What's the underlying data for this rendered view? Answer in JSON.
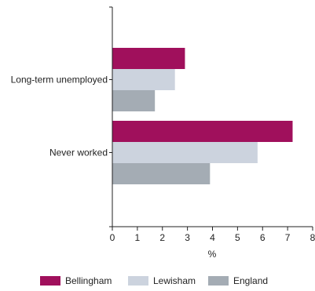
{
  "chart_data": {
    "type": "bar",
    "orientation": "horizontal",
    "categories": [
      "Long-term unemployed",
      "Never worked"
    ],
    "series": [
      {
        "name": "Bellingham",
        "color": "#a0105c",
        "values": [
          2.9,
          7.2
        ]
      },
      {
        "name": "Lewisham",
        "color": "#ccd3de",
        "values": [
          2.5,
          5.8
        ]
      },
      {
        "name": "England",
        "color": "#a4acb4",
        "values": [
          1.7,
          3.9
        ]
      }
    ],
    "x_ticks": [
      "0",
      "1",
      "2",
      "3",
      "4",
      "5",
      "6",
      "7",
      "8"
    ],
    "xlim": [
      0,
      8
    ],
    "xlabel": "%",
    "ylabel": "",
    "title": "",
    "grid": false,
    "legend_position": "bottom"
  }
}
